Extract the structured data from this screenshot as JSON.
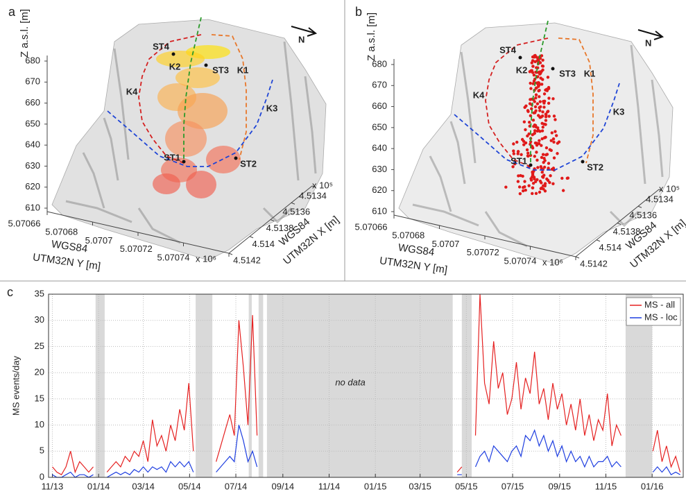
{
  "chart_data": [
    {
      "type": "surface3d",
      "panel": "a",
      "zlabel": "Z a.s.l. [m]",
      "zlim": [
        610,
        680
      ],
      "zticks": [
        610,
        620,
        630,
        640,
        650,
        660,
        670,
        680
      ],
      "ylabel": [
        "WGS84",
        "UTM32N Y [m]"
      ],
      "ylim": [
        5.07066,
        5.07074
      ],
      "yticks": [
        5.07066,
        5.07068,
        5.0707,
        5.07072,
        5.07074
      ],
      "y_multiplier": "x 10⁶",
      "xlabel": [
        "WGS84",
        "UTM32N X [m]"
      ],
      "xlim": [
        4.5134,
        4.5142
      ],
      "xticks": [
        4.5134,
        4.5136,
        4.5138,
        4.514,
        4.5142
      ],
      "x_multiplier": "x 10⁵",
      "north": "N",
      "stations": [
        "ST1",
        "ST2",
        "ST3",
        "ST4"
      ],
      "curves": [
        {
          "name": "K1",
          "color": "#e8772a"
        },
        {
          "name": "K2",
          "color": "#2a9a2a"
        },
        {
          "name": "K3",
          "color": "#1f45d6"
        },
        {
          "name": "K4",
          "color": "#d42020"
        }
      ]
    },
    {
      "type": "surface3d",
      "panel": "b",
      "zlabel": "Z a.s.l. [m]",
      "zlim": [
        610,
        680
      ],
      "zticks": [
        610,
        620,
        630,
        640,
        650,
        660,
        670,
        680
      ],
      "ylabel": [
        "WGS84",
        "UTM32N Y [m]"
      ],
      "ylim": [
        5.07066,
        5.07074
      ],
      "yticks": [
        5.07066,
        5.07068,
        5.0707,
        5.07072,
        5.07074
      ],
      "y_multiplier": "x 10⁶",
      "xlabel": [
        "WGS84",
        "UTM32N X [m]"
      ],
      "xlim": [
        4.5134,
        4.5142
      ],
      "xticks": [
        4.5134,
        4.5136,
        4.5138,
        4.514,
        4.5142
      ],
      "x_multiplier": "x 10⁵",
      "north": "N",
      "stations": [
        "ST1",
        "ST2",
        "ST3",
        "ST4"
      ],
      "curves": [
        {
          "name": "K1",
          "color": "#e8772a"
        },
        {
          "name": "K2",
          "color": "#2a9a2a"
        },
        {
          "name": "K3",
          "color": "#1f45d6"
        },
        {
          "name": "K4",
          "color": "#d42020"
        }
      ]
    },
    {
      "type": "line",
      "panel": "c",
      "ylabel": "MS events/day",
      "annotation": "no data",
      "xlim": [
        -5,
        832
      ],
      "ylim": [
        0,
        35
      ],
      "yticks": [
        0,
        5,
        10,
        15,
        20,
        25,
        30,
        35
      ],
      "grid": true,
      "legend": "upper right",
      "xticks": [
        {
          "value": 0,
          "label": "11/13"
        },
        {
          "value": 61,
          "label": "01/14"
        },
        {
          "value": 120,
          "label": "03/14"
        },
        {
          "value": 181,
          "label": "05/14"
        },
        {
          "value": 242,
          "label": "07/14"
        },
        {
          "value": 304,
          "label": "09/14"
        },
        {
          "value": 365,
          "label": "11/14"
        },
        {
          "value": 426,
          "label": "01/15"
        },
        {
          "value": 485,
          "label": "03/15"
        },
        {
          "value": 546,
          "label": "05/15"
        },
        {
          "value": 607,
          "label": "07/15"
        },
        {
          "value": 669,
          "label": "09/15"
        },
        {
          "value": 730,
          "label": "11/15"
        },
        {
          "value": 791,
          "label": "01/16"
        }
      ],
      "shaded_periods": [
        [
          57,
          69
        ],
        [
          189,
          211
        ],
        [
          259,
          263
        ],
        [
          272,
          278
        ],
        [
          283,
          528
        ],
        [
          540,
          553
        ],
        [
          756,
          791
        ]
      ],
      "x": [
        0,
        6,
        12,
        18,
        24,
        30,
        36,
        42,
        48,
        54,
        60,
        66,
        72,
        78,
        84,
        90,
        96,
        102,
        108,
        114,
        120,
        126,
        132,
        138,
        144,
        150,
        156,
        162,
        168,
        174,
        180,
        186,
        192,
        198,
        204,
        210,
        216,
        222,
        228,
        234,
        240,
        246,
        252,
        258,
        264,
        270,
        276,
        282,
        288,
        294,
        300,
        306,
        312,
        318,
        324,
        330,
        336,
        342,
        348,
        354,
        360,
        366,
        372,
        378,
        384,
        390,
        396,
        402,
        408,
        414,
        420,
        426,
        432,
        438,
        444,
        450,
        456,
        462,
        468,
        474,
        480,
        486,
        492,
        498,
        504,
        510,
        516,
        522,
        528,
        534,
        540,
        546,
        552,
        558,
        564,
        570,
        576,
        582,
        588,
        594,
        600,
        606,
        612,
        618,
        624,
        630,
        636,
        642,
        648,
        654,
        660,
        666,
        672,
        678,
        684,
        690,
        696,
        702,
        708,
        714,
        720,
        726,
        732,
        738,
        744,
        750,
        756,
        762,
        768,
        774,
        780,
        786,
        792,
        798,
        804,
        810,
        816,
        822,
        828
      ],
      "series": [
        {
          "name": "MS - all",
          "color": "#e52020",
          "values": [
            2,
            1,
            0.5,
            2,
            5,
            1,
            3,
            2,
            1,
            2,
            null,
            null,
            1,
            2,
            3,
            2,
            4,
            3,
            5,
            4,
            7,
            3,
            11,
            6,
            8,
            5,
            10,
            7,
            13,
            9,
            18,
            5,
            null,
            null,
            null,
            null,
            3,
            6,
            9,
            12,
            8,
            30,
            21,
            10,
            31,
            8,
            null,
            14,
            null,
            null,
            null,
            null,
            null,
            null,
            null,
            null,
            null,
            null,
            null,
            null,
            null,
            null,
            null,
            null,
            null,
            null,
            null,
            null,
            null,
            null,
            null,
            null,
            null,
            null,
            null,
            null,
            null,
            null,
            null,
            null,
            null,
            null,
            null,
            null,
            null,
            null,
            null,
            null,
            null,
            1,
            2,
            null,
            null,
            8,
            35,
            18,
            14,
            26,
            17,
            20,
            12,
            15,
            22,
            13,
            19,
            16,
            24,
            14,
            17,
            11,
            18,
            13,
            16,
            10,
            14,
            9,
            15,
            8,
            12,
            7,
            11,
            9,
            16,
            6,
            10,
            8,
            null,
            null,
            null,
            null,
            null,
            null,
            5,
            9,
            3,
            6,
            2,
            4,
            1
          ]
        },
        {
          "name": "MS - loc",
          "color": "#1f3fe0",
          "values": [
            0.5,
            0,
            0,
            0.5,
            1,
            0,
            0.5,
            0.5,
            0,
            0.5,
            null,
            null,
            0,
            0.5,
            1,
            0.5,
            1,
            0.5,
            1.5,
            1,
            2,
            1,
            2,
            1.5,
            2,
            1,
            3,
            2,
            3,
            2,
            3,
            1,
            null,
            null,
            null,
            null,
            1,
            2,
            3,
            4,
            3,
            10,
            7,
            3,
            5,
            2,
            null,
            11,
            null,
            null,
            null,
            null,
            null,
            null,
            null,
            null,
            null,
            null,
            null,
            null,
            null,
            null,
            null,
            null,
            null,
            null,
            null,
            null,
            null,
            null,
            null,
            null,
            null,
            null,
            null,
            null,
            null,
            null,
            null,
            null,
            null,
            null,
            null,
            null,
            null,
            null,
            null,
            null,
            null,
            0.5,
            0.5,
            null,
            null,
            2,
            4,
            5,
            3,
            6,
            5,
            4,
            3,
            5,
            6,
            4,
            8,
            7,
            9,
            6,
            8,
            5,
            7,
            4,
            6,
            3,
            5,
            3,
            4,
            2,
            4,
            2,
            3,
            3,
            4,
            2,
            3,
            2,
            null,
            null,
            null,
            null,
            null,
            null,
            1,
            2,
            1,
            2,
            0.5,
            1,
            0.5
          ]
        }
      ]
    }
  ]
}
